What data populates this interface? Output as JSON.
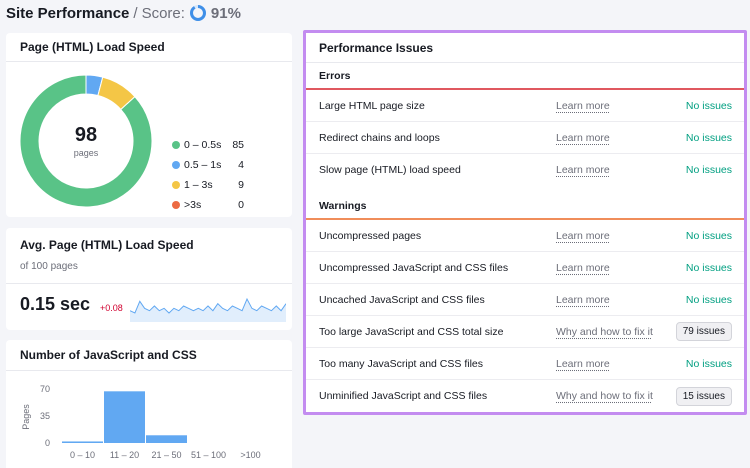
{
  "header": {
    "title": "Site Performance",
    "separator": "/",
    "score_label": "Score:",
    "score_value": "91%",
    "score_percent": 91
  },
  "load_speed": {
    "title": "Page (HTML) Load Speed",
    "total": "98",
    "total_caption": "pages",
    "legend": [
      {
        "label": "0 – 0.5s",
        "value": "85",
        "color": "#59c387"
      },
      {
        "label": "0.5 – 1s",
        "value": "4",
        "color": "#61a8f2"
      },
      {
        "label": "1 – 3s",
        "value": "9",
        "color": "#f4c646"
      },
      {
        "label": ">3s",
        "value": "0",
        "color": "#ec6a42"
      }
    ]
  },
  "avg_speed": {
    "title": "Avg. Page (HTML) Load Speed",
    "subtitle": "of 100 pages",
    "value": "0.15 sec",
    "delta": "+0.08",
    "sparkline_color": "#61a8f2",
    "sparkline": [
      0.12,
      0.11,
      0.16,
      0.13,
      0.12,
      0.14,
      0.12,
      0.13,
      0.11,
      0.13,
      0.12,
      0.14,
      0.13,
      0.12,
      0.13,
      0.12,
      0.14,
      0.12,
      0.15,
      0.13,
      0.12,
      0.14,
      0.13,
      0.12,
      0.17,
      0.13,
      0.12,
      0.14,
      0.13,
      0.12,
      0.14,
      0.12,
      0.15
    ]
  },
  "js_css": {
    "title": "Number of JavaScript and CSS",
    "y_label": "Pages",
    "y_ticks": [
      "0",
      "35",
      "70"
    ],
    "bar_color": "#61a8f2",
    "chart_data": {
      "type": "bar",
      "categories": [
        "0 – 10",
        "11 – 20",
        "21 – 50",
        "51 – 100",
        ">100"
      ],
      "values": [
        2,
        67,
        10,
        0,
        0
      ],
      "ylabel": "Pages",
      "ylim": [
        0,
        70
      ]
    }
  },
  "issues": {
    "title": "Performance Issues",
    "sections": [
      {
        "label": "Errors",
        "bar_color": "#e0585f",
        "rows": [
          {
            "name": "Large HTML page size",
            "link": "Learn more",
            "status": "No issues",
            "badge": ""
          },
          {
            "name": "Redirect chains and loops",
            "link": "Learn more",
            "status": "No issues",
            "badge": ""
          },
          {
            "name": "Slow page (HTML) load speed",
            "link": "Learn more",
            "status": "No issues",
            "badge": ""
          }
        ]
      },
      {
        "label": "Warnings",
        "bar_color": "#f08d5a",
        "rows": [
          {
            "name": "Uncompressed pages",
            "link": "Learn more",
            "status": "No issues",
            "badge": ""
          },
          {
            "name": "Uncompressed JavaScript and CSS files",
            "link": "Learn more",
            "status": "No issues",
            "badge": ""
          },
          {
            "name": "Uncached JavaScript and CSS files",
            "link": "Learn more",
            "status": "No issues",
            "badge": ""
          },
          {
            "name": "Too large JavaScript and CSS total size",
            "link": "Why and how to fix it",
            "status": "",
            "badge": "79 issues"
          },
          {
            "name": "Too many JavaScript and CSS files",
            "link": "Learn more",
            "status": "No issues",
            "badge": ""
          },
          {
            "name": "Unminified JavaScript and CSS files",
            "link": "Why and how to fix it",
            "status": "",
            "badge": "15 issues"
          }
        ]
      }
    ]
  }
}
